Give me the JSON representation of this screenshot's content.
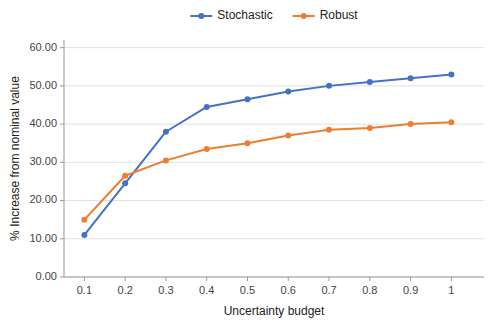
{
  "chart_data": {
    "type": "line",
    "xlabel": "Uncertainty budget",
    "ylabel": "% Increase from nominal value",
    "x": [
      0.1,
      0.2,
      0.3,
      0.4,
      0.5,
      0.6,
      0.7,
      0.8,
      0.9,
      1.0
    ],
    "series": [
      {
        "name": "Stochastic",
        "color": "#4472C4",
        "marker": "circle",
        "values": [
          11.0,
          24.5,
          38.0,
          44.5,
          46.5,
          48.5,
          50.0,
          51.0,
          52.0,
          53.0
        ]
      },
      {
        "name": "Robust",
        "color": "#ED7D31",
        "marker": "circle",
        "values": [
          15.0,
          26.5,
          30.5,
          33.5,
          35.0,
          37.0,
          38.5,
          39.0,
          40.0,
          40.5
        ]
      }
    ],
    "xlim": [
      0.05,
      1.08
    ],
    "xticks": [
      0.1,
      0.2,
      0.3,
      0.4,
      0.5,
      0.6,
      0.7,
      0.8,
      0.9,
      1
    ],
    "ylim": [
      0,
      62
    ],
    "yticks": [
      {
        "value": 0,
        "label": "0.00"
      },
      {
        "value": 10,
        "label": "10.00"
      },
      {
        "value": 20,
        "label": "20.00"
      },
      {
        "value": 30,
        "label": "30.00"
      },
      {
        "value": 40,
        "label": "40.00"
      },
      {
        "value": 50,
        "label": "50.00"
      },
      {
        "value": 60,
        "label": "60.00"
      }
    ],
    "grid": true,
    "legend": "top"
  }
}
